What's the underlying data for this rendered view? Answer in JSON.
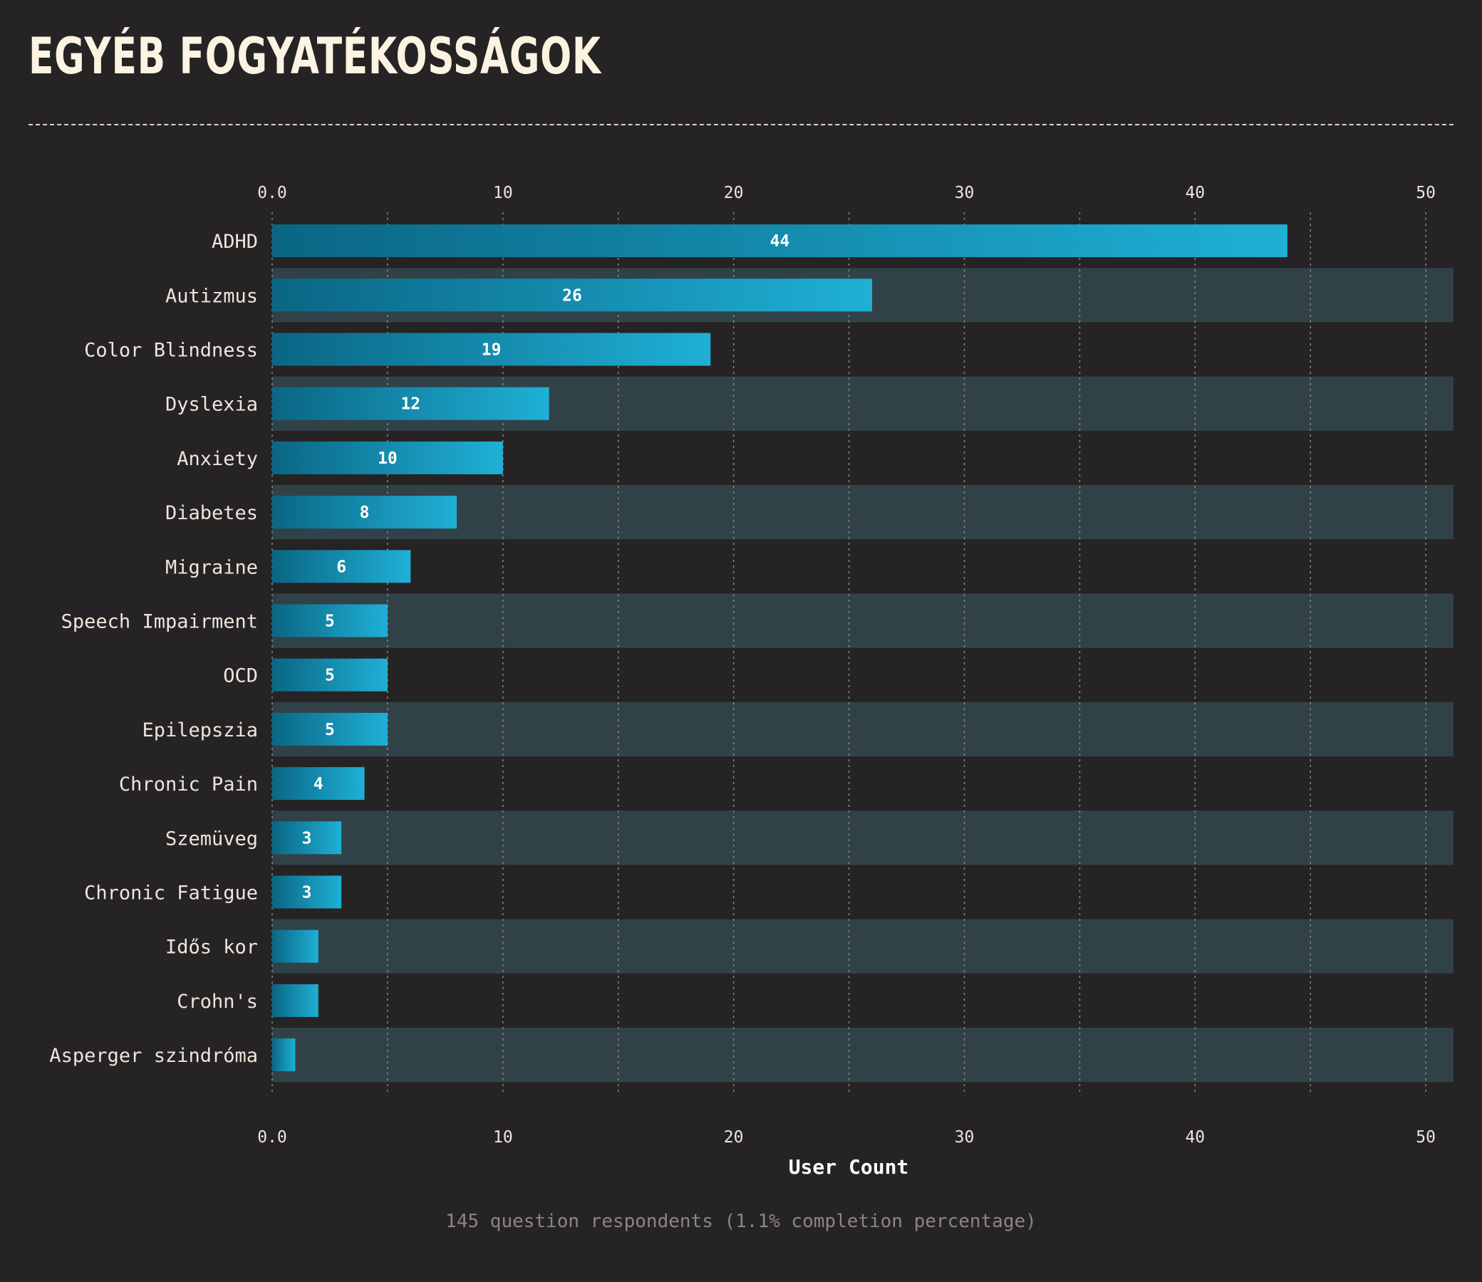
{
  "page": {
    "title": "EGYÉB FOGYATÉKOSSÁGOK",
    "footnote": "145 question respondents (1.1% completion percentage)"
  },
  "colors": {
    "background": "#262324",
    "band": "#304248",
    "bar_dark": "#0a6684",
    "bar_light": "#1fb0d6",
    "grid": "#8a8684"
  },
  "chart_data": {
    "type": "bar",
    "orientation": "horizontal",
    "categories": [
      "ADHD",
      "Autizmus",
      "Color Blindness",
      "Dyslexia",
      "Anxiety",
      "Diabetes",
      "Migraine",
      "Speech Impairment",
      "OCD",
      "Epilepszia",
      "Chronic Pain",
      "Szemüveg",
      "Chronic Fatigue",
      "Idős kor",
      "Crohn's",
      "Asperger szindróma"
    ],
    "values": [
      44,
      26,
      19,
      12,
      10,
      8,
      6,
      5,
      5,
      5,
      4,
      3,
      3,
      2,
      2,
      1
    ],
    "data_labels": [
      "44",
      "26",
      "19",
      "12",
      "10",
      "8",
      "6",
      "5",
      "5",
      "5",
      "4",
      "3",
      "3",
      "",
      "",
      ""
    ],
    "xlabel": "User Count",
    "ylabel": "",
    "xlim": [
      0,
      51.2
    ],
    "x_ticks": [
      0,
      10,
      20,
      30,
      40,
      50
    ],
    "x_tick_labels": [
      "0.0",
      "10",
      "20",
      "30",
      "40",
      "50"
    ],
    "tick_positions": [
      "top",
      "bottom"
    ],
    "grid": "vertical dotted"
  }
}
